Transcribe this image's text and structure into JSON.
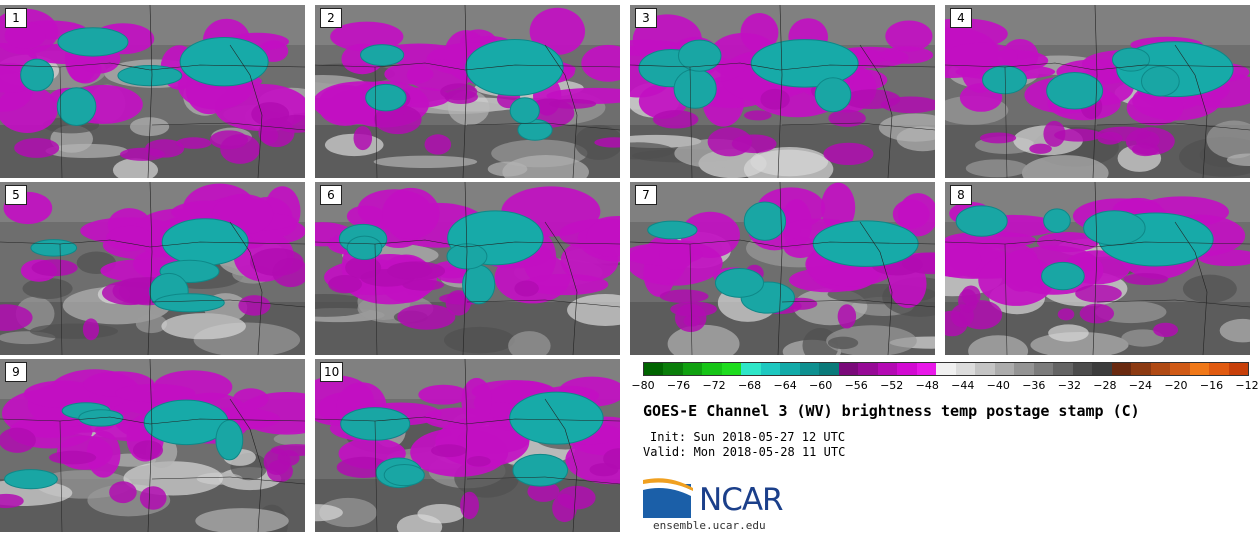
{
  "panels": [
    {
      "label": "1"
    },
    {
      "label": "2"
    },
    {
      "label": "3"
    },
    {
      "label": "4"
    },
    {
      "label": "5"
    },
    {
      "label": "6"
    },
    {
      "label": "7"
    },
    {
      "label": "8"
    },
    {
      "label": "9"
    },
    {
      "label": "10"
    }
  ],
  "colorbar": {
    "colors": [
      "#006400",
      "#0a7d0a",
      "#10a010",
      "#16c416",
      "#1edc1e",
      "#2ee6c8",
      "#1ec8c0",
      "#12aaa8",
      "#0e9090",
      "#0a7a7a",
      "#7a0a7a",
      "#960a96",
      "#b40ab4",
      "#d20ad2",
      "#e818e8",
      "#f0f0f0",
      "#dcdcdc",
      "#c4c4c4",
      "#acacac",
      "#949494",
      "#7c7c7c",
      "#646464",
      "#4c4c4c",
      "#3c3c3c",
      "#6a2a10",
      "#8c3a12",
      "#b04a14",
      "#d05a16",
      "#f07818",
      "#e05a10",
      "#c8400a"
    ],
    "ticks": [
      "−80",
      "−76",
      "−72",
      "−68",
      "−64",
      "−60",
      "−56",
      "−52",
      "−48",
      "−44",
      "−40",
      "−36",
      "−32",
      "−28",
      "−24",
      "−20",
      "−16",
      "−12"
    ]
  },
  "title": "GOES-E Channel 3 (WV) brightness temp postage stamp (C)",
  "init": "Init: Sun 2018-05-27 12 UTC",
  "valid": "Valid: Mon 2018-05-28 11 UTC",
  "logo_text": "NCAR",
  "website": "ensemble.ucar.edu"
}
